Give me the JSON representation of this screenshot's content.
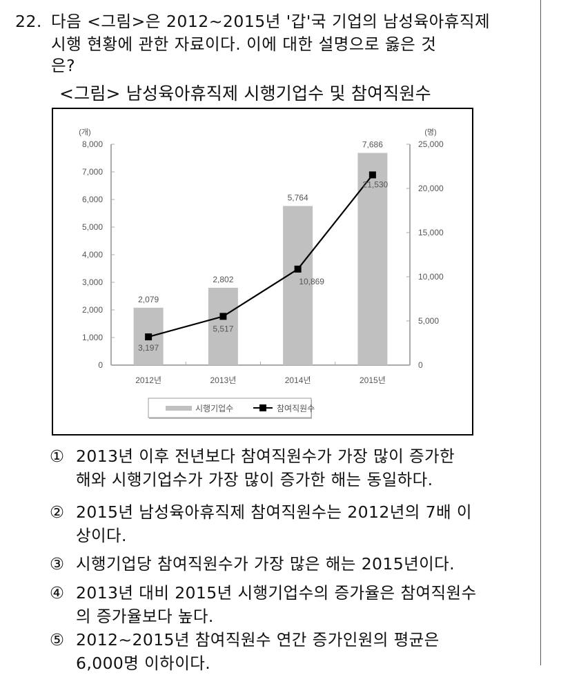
{
  "question": {
    "number": "22.",
    "lines": [
      "다음 <그림>은 2012~2015년 '갑'국 기업의 남성육아휴직제",
      "시행 현황에 관한 자료이다. 이에 대한 설명으로 옳은 것",
      "은?"
    ]
  },
  "figure": {
    "title": "<그림> 남성육아휴직제 시행기업수 및 참여직원수"
  },
  "chart_data": {
    "type": "bar+line",
    "title": "<그림> 남성육아휴직제 시행기업수 및 참여직원수",
    "categories": [
      "2012년",
      "2013년",
      "2014년",
      "2015년"
    ],
    "series": [
      {
        "name": "시행기업수",
        "type": "bar",
        "axis": "left",
        "values": [
          2079,
          2802,
          5764,
          7686
        ],
        "labels": [
          "2,079",
          "2,802",
          "5,764",
          "7,686"
        ],
        "color": "#c0c0c0"
      },
      {
        "name": "참여직원수",
        "type": "line",
        "axis": "right",
        "values": [
          3197,
          5517,
          10869,
          21530
        ],
        "labels": [
          "3,197",
          "5,517",
          "10,869",
          "21,530"
        ],
        "color": "#000000"
      }
    ],
    "y_left": {
      "unit": "(개)",
      "ylim": [
        0,
        8000
      ],
      "ticks": [
        "0",
        "1,000",
        "2,000",
        "3,000",
        "4,000",
        "5,000",
        "6,000",
        "7,000",
        "8,000"
      ]
    },
    "y_right": {
      "unit": "(명)",
      "ylim": [
        0,
        25000
      ],
      "ticks": [
        "0",
        "5,000",
        "10,000",
        "15,000",
        "20,000",
        "25,000"
      ]
    },
    "grid": false,
    "legend": {
      "position": "bottom",
      "entries": [
        "시행기업수",
        "참여직원수"
      ]
    }
  },
  "options": [
    {
      "num": "①",
      "line1": "2013년 이후 전년보다 참여직원수가 가장 많이 증가한",
      "line2": "해와 시행기업수가 가장 많이 증가한 해는 동일하다."
    },
    {
      "num": "②",
      "line1": "2015년 남성육아휴직제 참여직원수는 2012년의 7배 이",
      "line2": "상이다."
    },
    {
      "num": "③",
      "line1": "시행기업당 참여직원수가 가장 많은 해는 2015년이다.",
      "line2": ""
    },
    {
      "num": "④",
      "line1": "2013년 대비 2015년 시행기업수의 증가율은 참여직원수",
      "line2": "의 증가율보다 높다."
    },
    {
      "num": "⑤",
      "line1": "2012~2015년 참여직원수 연간 증가인원의 평균은",
      "line2": "6,000명 이하이다."
    }
  ]
}
